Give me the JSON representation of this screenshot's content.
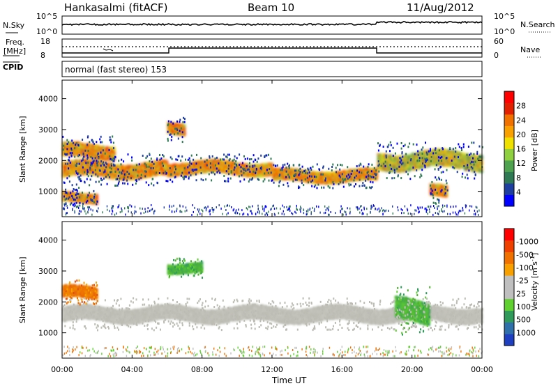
{
  "header": {
    "radar": "Hankasalmi (fitACF)",
    "beam": "Beam 10",
    "date": "11/Aug/2012"
  },
  "noise_panel": {
    "left_label": "N.Sky",
    "right_label": "N.Search",
    "left_ticks": [
      "10^5",
      "10^0"
    ],
    "right_ticks": [
      "10^5",
      "10^0"
    ],
    "step_hours": [
      0,
      18
    ],
    "step_values": [
      "low",
      "high"
    ]
  },
  "freq_panel": {
    "left_label": "Freq.",
    "left_unit": "[MHz]",
    "left_ticks": [
      "18",
      "8"
    ],
    "right_ticks": [
      "60",
      "0"
    ],
    "right_label": "Nave",
    "frequency_steps": [
      {
        "from_hour": 0,
        "to_hour": 6,
        "level": "low"
      },
      {
        "from_hour": 6,
        "to_hour": 18,
        "level": "high"
      },
      {
        "from_hour": 18,
        "to_hour": 24,
        "level": "low"
      }
    ]
  },
  "cpid": {
    "label": "CPID",
    "mode_text": "normal (fast stereo) 153"
  },
  "x_axis": {
    "label": "Time UT",
    "ticks": [
      "00:00",
      "04:00",
      "08:00",
      "12:00",
      "16:00",
      "20:00",
      "00:00"
    ],
    "range_hours": [
      0,
      24
    ]
  },
  "chart_data": [
    {
      "type": "heatmap",
      "quantity": "power",
      "ylabel": "Slant Range [km]",
      "ylim": [
        180,
        4600
      ],
      "yticks": [
        "1000",
        "2000",
        "3000",
        "4000"
      ],
      "ytick_values": [
        1000,
        2000,
        3000,
        4000
      ],
      "colorbar": {
        "label": "Power [dB]",
        "tick_labels": [
          "4",
          "8",
          "12",
          "16",
          "20",
          "24",
          "28"
        ],
        "colors": [
          "#0000ff",
          "#1f3fa0",
          "#2f7a55",
          "#4fa24f",
          "#8fd040",
          "#f0e000",
          "#f7a000",
          "#f07000",
          "#e02000",
          "#ff0000"
        ]
      },
      "bands": [
        {
          "from_hour": 0,
          "to_hour": 6,
          "center_km": 1700,
          "width_km": 260,
          "level": "high"
        },
        {
          "from_hour": 0,
          "to_hour": 3,
          "center_km": 2300,
          "width_km": 240,
          "level": "high"
        },
        {
          "from_hour": 0,
          "to_hour": 2,
          "center_km": 800,
          "width_km": 160,
          "level": "high"
        },
        {
          "from_hour": 6,
          "to_hour": 12,
          "center_km": 1750,
          "width_km": 220,
          "level": "high"
        },
        {
          "from_hour": 12,
          "to_hour": 18,
          "center_km": 1500,
          "width_km": 200,
          "level": "high"
        },
        {
          "from_hour": 18,
          "to_hour": 24,
          "center_km": 2000,
          "width_km": 300,
          "level": "medium"
        },
        {
          "from_hour": 21,
          "to_hour": 22,
          "center_km": 1000,
          "width_km": 200,
          "level": "high"
        },
        {
          "from_hour": 6,
          "to_hour": 7,
          "center_km": 3000,
          "width_km": 200,
          "level": "high"
        }
      ]
    },
    {
      "type": "heatmap",
      "quantity": "velocity",
      "ylabel": "Slant Range [km]",
      "ylim": [
        180,
        4600
      ],
      "yticks": [
        "1000",
        "2000",
        "3000",
        "4000"
      ],
      "ytick_values": [
        1000,
        2000,
        3000,
        4000
      ],
      "colorbar": {
        "label": "Velocity [m s",
        "label_superscript": "-1",
        "label_close": "]",
        "tick_labels": [
          "1000",
          "500",
          "100",
          "25",
          "-25",
          "-100",
          "-500",
          "-1000"
        ],
        "colors": [
          "#1e40c0",
          "#2f6faa",
          "#2f9a5a",
          "#5fd02f",
          "#bfbfbf",
          "#bfbfbf",
          "#f7a000",
          "#f07000",
          "#f04000",
          "#ff0000"
        ]
      },
      "ground_scatter_color": "#bcbcb4",
      "bands": [
        {
          "from_hour": 0,
          "to_hour": 24,
          "center_km": 1600,
          "width_km": 260,
          "level": "ground"
        },
        {
          "from_hour": 0,
          "to_hour": 2,
          "center_km": 2300,
          "width_km": 200,
          "level": "negative"
        },
        {
          "from_hour": 19,
          "to_hour": 21,
          "center_km": 1700,
          "width_km": 400,
          "level": "positive"
        },
        {
          "from_hour": 6,
          "to_hour": 8,
          "center_km": 3100,
          "width_km": 160,
          "level": "positive"
        }
      ]
    }
  ]
}
